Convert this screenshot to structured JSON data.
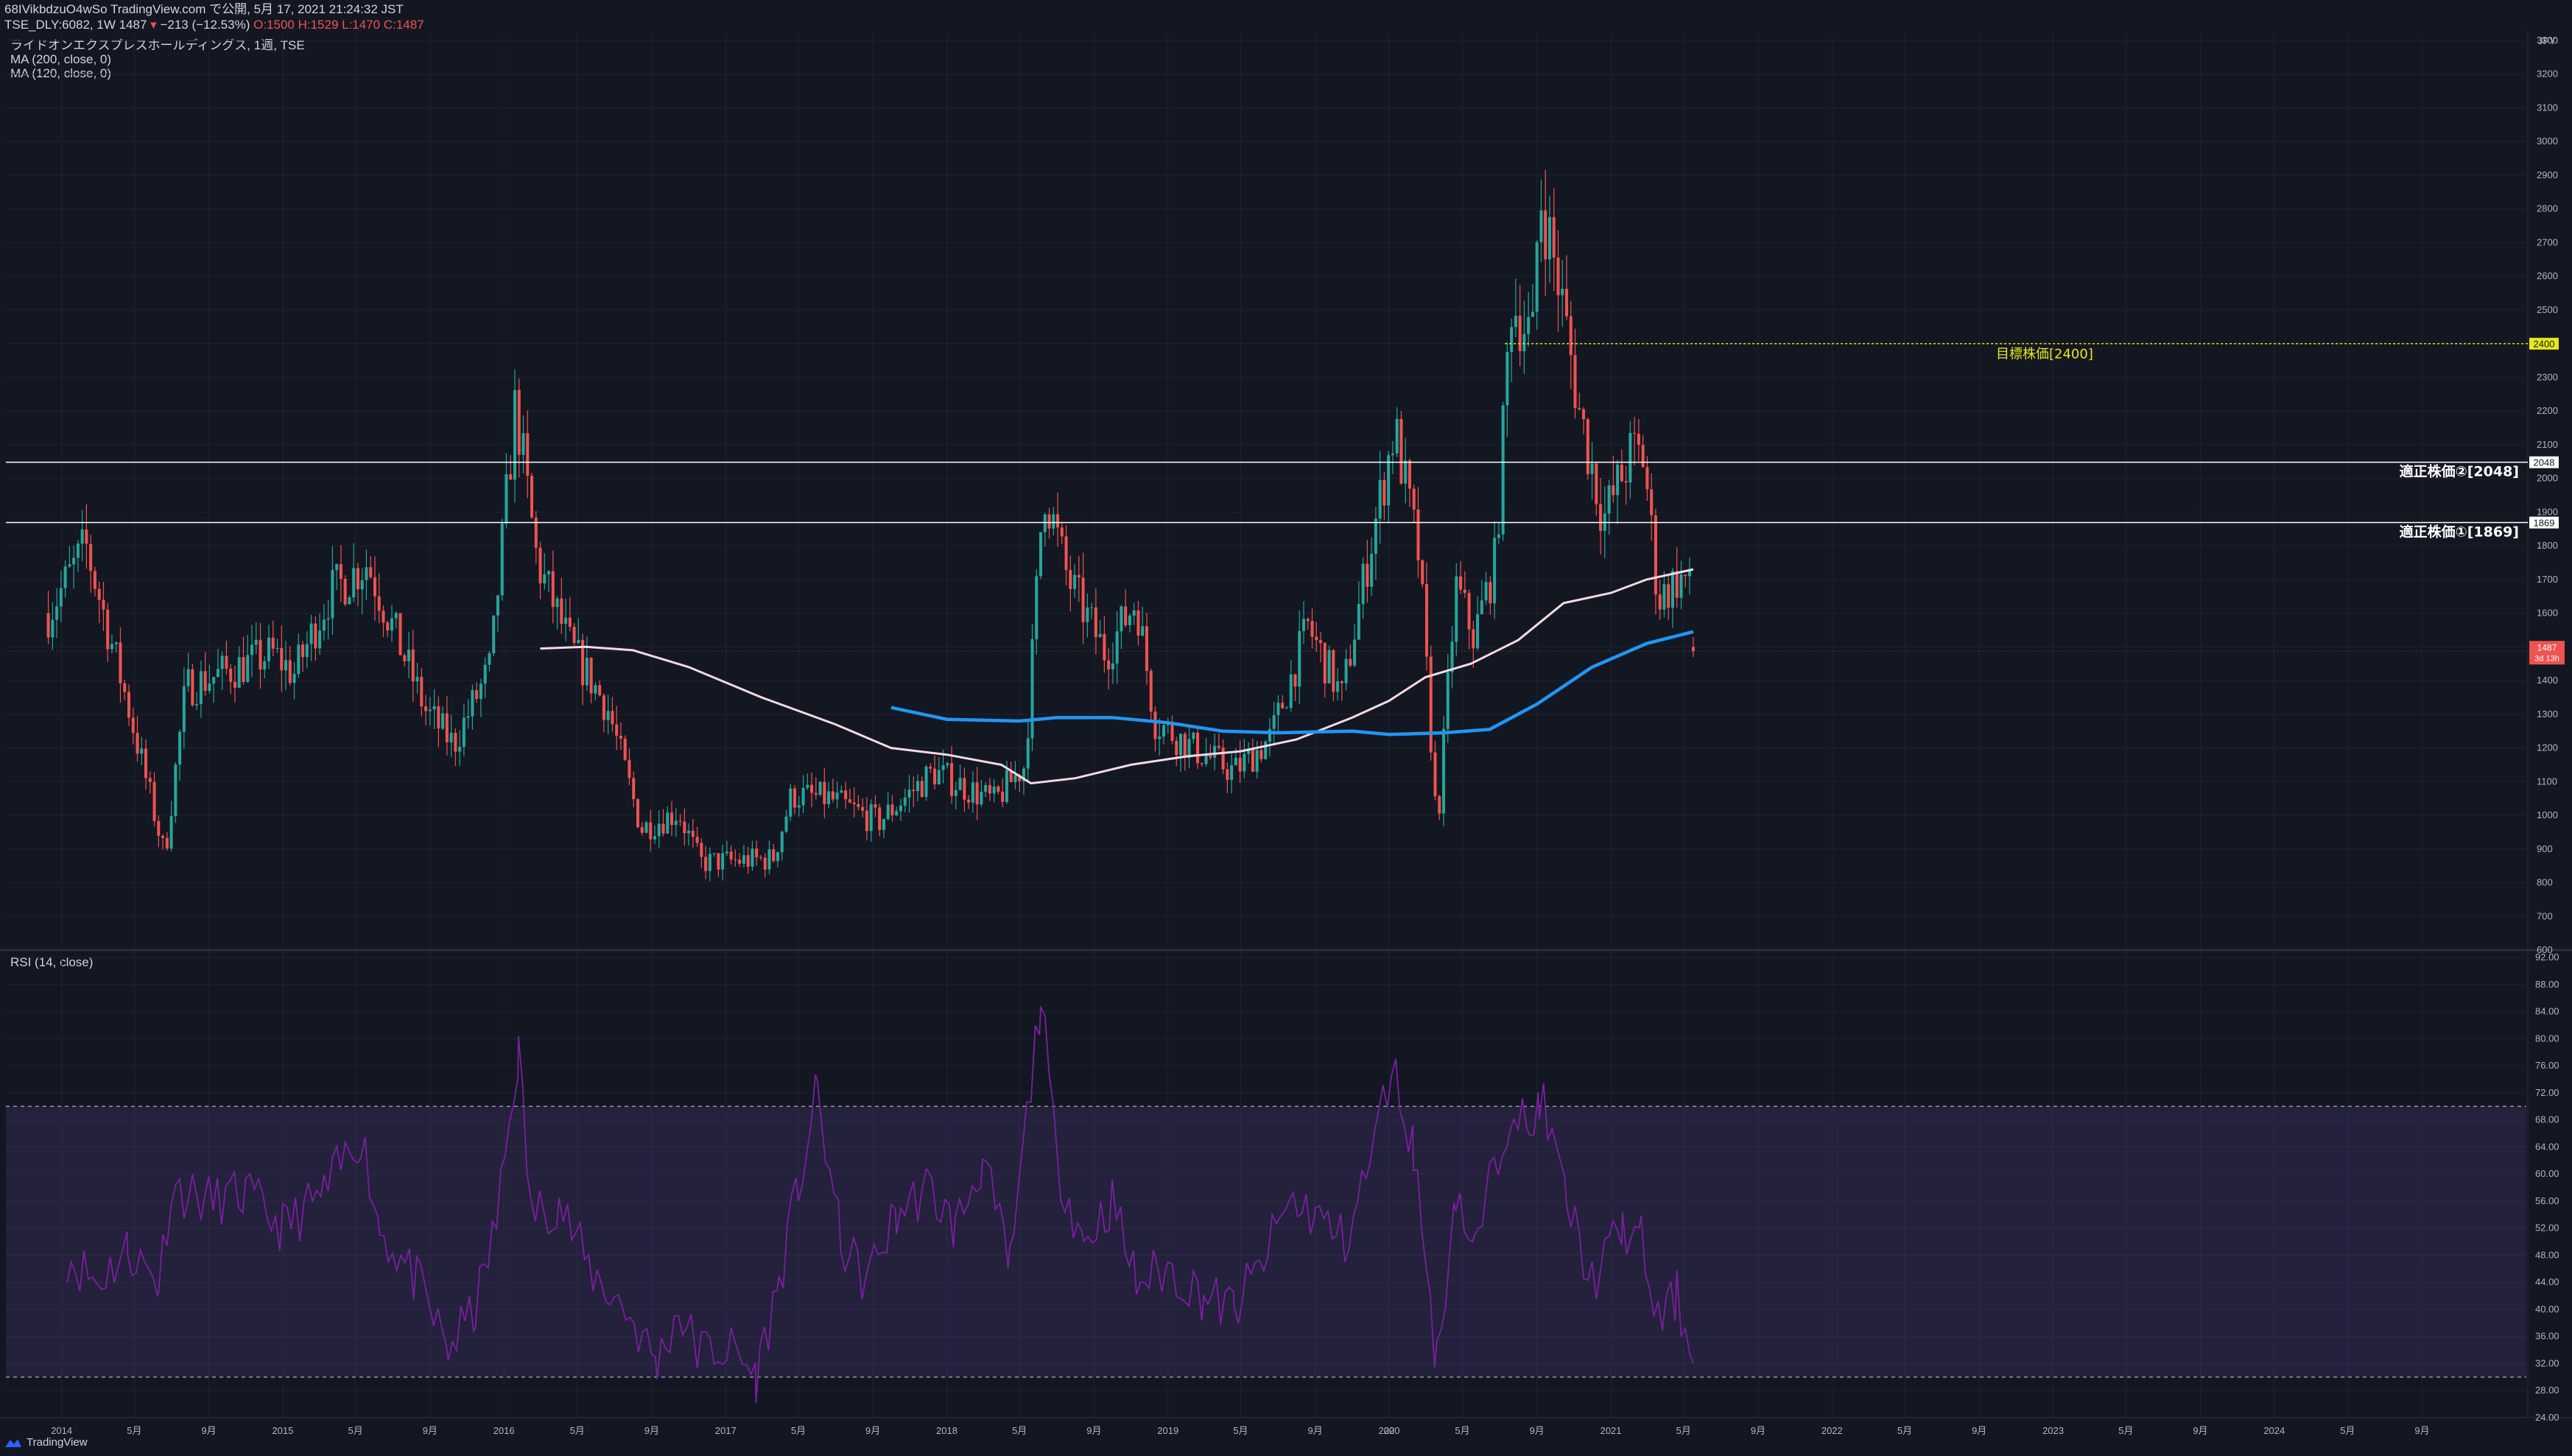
{
  "header": {
    "published": "68IVikbdzuO4wSo TradingView.com で公開, 5月 17, 2021 21:24:32 JST",
    "symbol": "TSE_DLY:6082, 1W 1487",
    "change": "−213 (−12.53%)",
    "ohlc": "O:1500 H:1529 L:1470 C:1487"
  },
  "legend": {
    "title": "ライドオンエクスプレスホールディングス, 1週, TSE",
    "ma1": "MA (200, close, 0)",
    "ma2": "MA (120, close, 0)"
  },
  "rsi_label": "RSI (14, close)",
  "footer": {
    "brand": "TradingView"
  },
  "colors": {
    "background": "#131722",
    "up": "#26a69a",
    "down": "#ef5350",
    "ma200": "#f3d9e6",
    "ma120": "#2196f3",
    "rsi": "#7b1fa2",
    "target": "#e8e81a"
  },
  "annotations": {
    "target_label": "目標株価[2400]",
    "fair2_label": "適正株価②[2048]",
    "fair1_label": "適正株価①[1869]"
  },
  "price_tags": {
    "target": "2400",
    "fair2": "2048",
    "fair1": "1869",
    "last": "1487",
    "countdown": "3d 13h",
    "currency": "JPY"
  },
  "chart_data": [
    {
      "type": "candlestick",
      "panel": "price",
      "ylim": [
        600,
        3300
      ],
      "grid": true,
      "x_ticks": [
        "2014",
        "5月",
        "9月",
        "2015",
        "5月",
        "9月",
        "2016",
        "5月",
        "9月",
        "2017",
        "5月",
        "9月",
        "2018",
        "5月",
        "9月",
        "2019",
        "5月",
        "9月",
        "2020",
        "5月",
        "9月",
        "2021",
        "5月",
        "9月",
        "2022",
        "5月",
        "9月",
        "2023",
        "5月",
        "9月",
        "2024",
        "5月",
        "9月",
        "20"
      ],
      "y_ticks": [
        600,
        700,
        800,
        900,
        1000,
        1100,
        1200,
        1300,
        1400,
        1500,
        1600,
        1700,
        1800,
        1900,
        2000,
        2100,
        2200,
        2300,
        2400,
        2500,
        2600,
        2700,
        2800,
        2900,
        3000,
        3100,
        3200,
        3300
      ],
      "x_range": [
        "2013-10-01",
        "2025-02-20"
      ],
      "anchors": [
        {
          "date": "2013-12-10",
          "close": 1600
        },
        {
          "date": "2014-02-10",
          "close": 1800
        },
        {
          "date": "2014-04-20",
          "close": 1330
        },
        {
          "date": "2014-06-20",
          "close": 880
        },
        {
          "date": "2014-07-25",
          "close": 1380
        },
        {
          "date": "2014-12-15",
          "close": 1480
        },
        {
          "date": "2015-01-20",
          "close": 1420
        },
        {
          "date": "2015-03-20",
          "close": 1660
        },
        {
          "date": "2015-05-20",
          "close": 1750
        },
        {
          "date": "2015-08-25",
          "close": 1310
        },
        {
          "date": "2015-10-10",
          "close": 1210
        },
        {
          "date": "2015-12-10",
          "close": 1440
        },
        {
          "date": "2016-01-20",
          "close": 2220
        },
        {
          "date": "2016-02-25",
          "close": 1750
        },
        {
          "date": "2016-04-20",
          "close": 1500
        },
        {
          "date": "2016-06-20",
          "close": 1320
        },
        {
          "date": "2016-08-15",
          "close": 960
        },
        {
          "date": "2016-10-15",
          "close": 1010
        },
        {
          "date": "2016-11-20",
          "close": 860
        },
        {
          "date": "2017-03-20",
          "close": 870
        },
        {
          "date": "2017-04-20",
          "close": 1060
        },
        {
          "date": "2017-06-20",
          "close": 1050
        },
        {
          "date": "2017-09-10",
          "close": 980
        },
        {
          "date": "2017-12-10",
          "close": 1130
        },
        {
          "date": "2018-03-20",
          "close": 1040
        },
        {
          "date": "2018-05-10",
          "close": 1150
        },
        {
          "date": "2018-06-10",
          "close": 1980
        },
        {
          "date": "2018-07-20",
          "close": 1700
        },
        {
          "date": "2018-09-20",
          "close": 1480
        },
        {
          "date": "2018-11-10",
          "close": 1640
        },
        {
          "date": "2018-12-10",
          "close": 1280
        },
        {
          "date": "2019-02-10",
          "close": 1200
        },
        {
          "date": "2019-04-20",
          "close": 1130
        },
        {
          "date": "2019-06-20",
          "close": 1230
        },
        {
          "date": "2019-08-20",
          "close": 1560
        },
        {
          "date": "2019-10-15",
          "close": 1350
        },
        {
          "date": "2019-11-30",
          "close": 1790
        },
        {
          "date": "2020-01-10",
          "close": 2150
        },
        {
          "date": "2020-02-20",
          "close": 1760
        },
        {
          "date": "2020-03-20",
          "close": 950
        },
        {
          "date": "2020-04-20",
          "close": 1680
        },
        {
          "date": "2020-05-20",
          "close": 1530
        },
        {
          "date": "2020-06-25",
          "close": 1760
        },
        {
          "date": "2020-07-20",
          "close": 2530
        },
        {
          "date": "2020-08-25",
          "close": 2410
        },
        {
          "date": "2020-09-05",
          "close": 2860
        },
        {
          "date": "2020-10-10",
          "close": 2550
        },
        {
          "date": "2020-11-10",
          "close": 2200
        },
        {
          "date": "2020-12-20",
          "close": 1880
        },
        {
          "date": "2021-02-05",
          "close": 2080
        },
        {
          "date": "2021-02-25",
          "close": 2060
        },
        {
          "date": "2021-03-20",
          "close": 1640
        },
        {
          "date": "2021-04-20",
          "close": 1700
        },
        {
          "date": "2021-05-10",
          "close": 1700
        },
        {
          "date": "2021-05-17",
          "close": 1487
        }
      ],
      "last_candle": {
        "date": "2021-05-17",
        "open": 1500,
        "high": 1529,
        "low": 1470,
        "close": 1487
      },
      "annotation_anchors": {
        "target_start_date": "2020-07-10",
        "fair_start_date": "2013-10-01"
      },
      "levels": [
        {
          "label": "目標株価[2400]",
          "value": 2400,
          "style": "dotted"
        },
        {
          "label": "適正株価②[2048]",
          "value": 2048,
          "style": "solid"
        },
        {
          "label": "適正株価①[1869]",
          "value": 1869,
          "style": "solid"
        }
      ],
      "ma200": {
        "name": "MA (200, close, 0)",
        "points": [
          [
            "2016-03-01",
            1495
          ],
          [
            "2016-05-15",
            1500
          ],
          [
            "2016-08-01",
            1490
          ],
          [
            "2016-11-01",
            1440
          ],
          [
            "2017-03-01",
            1350
          ],
          [
            "2017-07-01",
            1270
          ],
          [
            "2017-10-01",
            1200
          ],
          [
            "2018-01-01",
            1180
          ],
          [
            "2018-04-01",
            1150
          ],
          [
            "2018-05-20",
            1095
          ],
          [
            "2018-08-01",
            1110
          ],
          [
            "2018-11-01",
            1150
          ],
          [
            "2019-02-01",
            1175
          ],
          [
            "2019-05-01",
            1190
          ],
          [
            "2019-08-01",
            1225
          ],
          [
            "2019-11-01",
            1290
          ],
          [
            "2020-01-01",
            1340
          ],
          [
            "2020-03-01",
            1410
          ],
          [
            "2020-05-15",
            1450
          ],
          [
            "2020-08-01",
            1520
          ],
          [
            "2020-10-15",
            1630
          ],
          [
            "2021-01-01",
            1660
          ],
          [
            "2021-03-01",
            1700
          ],
          [
            "2021-05-17",
            1730
          ]
        ]
      },
      "ma120": {
        "name": "MA (120, close, 0)",
        "points": [
          [
            "2017-10-01",
            1320
          ],
          [
            "2018-01-01",
            1285
          ],
          [
            "2018-05-01",
            1280
          ],
          [
            "2018-07-01",
            1290
          ],
          [
            "2018-10-01",
            1290
          ],
          [
            "2019-01-01",
            1275
          ],
          [
            "2019-04-01",
            1250
          ],
          [
            "2019-07-01",
            1245
          ],
          [
            "2019-11-01",
            1250
          ],
          [
            "2020-01-01",
            1240
          ],
          [
            "2020-04-01",
            1245
          ],
          [
            "2020-06-15",
            1255
          ],
          [
            "2020-09-01",
            1330
          ],
          [
            "2020-12-01",
            1440
          ],
          [
            "2021-03-01",
            1510
          ],
          [
            "2021-05-17",
            1545
          ]
        ]
      }
    },
    {
      "type": "line",
      "panel": "rsi",
      "title": "RSI (14, close)",
      "ylim": [
        24,
        92
      ],
      "y_ticks": [
        24,
        28,
        32,
        36,
        40,
        44,
        48,
        52,
        56,
        60,
        64,
        68,
        72,
        76,
        80,
        84,
        88,
        92
      ],
      "band": [
        30,
        70
      ],
      "points": [
        [
          "2014-01-10",
          48
        ],
        [
          "2014-03-01",
          44
        ],
        [
          "2014-04-20",
          49
        ],
        [
          "2014-06-10",
          44
        ],
        [
          "2014-07-01",
          58
        ],
        [
          "2014-09-01",
          56
        ],
        [
          "2014-11-01",
          57
        ],
        [
          "2015-01-01",
          52
        ],
        [
          "2015-03-10",
          57
        ],
        [
          "2015-05-10",
          66
        ],
        [
          "2015-06-10",
          52
        ],
        [
          "2015-08-10",
          44
        ],
        [
          "2015-10-01",
          34
        ],
        [
          "2015-11-15",
          40
        ],
        [
          "2015-12-20",
          53
        ],
        [
          "2016-01-25",
          78
        ],
        [
          "2016-02-15",
          54
        ],
        [
          "2016-04-01",
          56
        ],
        [
          "2016-05-20",
          46
        ],
        [
          "2016-07-20",
          40
        ],
        [
          "2016-09-10",
          32
        ],
        [
          "2016-10-15",
          40
        ],
        [
          "2016-11-15",
          34
        ],
        [
          "2017-01-15",
          34
        ],
        [
          "2017-02-20",
          30
        ],
        [
          "2017-03-30",
          44
        ],
        [
          "2017-05-01",
          58
        ],
        [
          "2017-06-01",
          72
        ],
        [
          "2017-07-10",
          50
        ],
        [
          "2017-08-20",
          44
        ],
        [
          "2017-10-10",
          54
        ],
        [
          "2017-12-01",
          58
        ],
        [
          "2018-01-15",
          52
        ],
        [
          "2018-03-01",
          62
        ],
        [
          "2018-04-15",
          46
        ],
        [
          "2018-06-05",
          86
        ],
        [
          "2018-07-01",
          62
        ],
        [
          "2018-08-15",
          50
        ],
        [
          "2018-10-01",
          56
        ],
        [
          "2018-11-10",
          44
        ],
        [
          "2019-01-01",
          46
        ],
        [
          "2019-03-01",
          42
        ],
        [
          "2019-04-20",
          40
        ],
        [
          "2019-06-01",
          46
        ],
        [
          "2019-07-20",
          56
        ],
        [
          "2019-09-01",
          54
        ],
        [
          "2019-10-20",
          50
        ],
        [
          "2019-12-01",
          62
        ],
        [
          "2020-01-05",
          76
        ],
        [
          "2020-02-10",
          64
        ],
        [
          "2020-03-20",
          32
        ],
        [
          "2020-04-20",
          58
        ],
        [
          "2020-05-20",
          48
        ],
        [
          "2020-06-15",
          58
        ],
        [
          "2020-07-25",
          72
        ],
        [
          "2020-08-20",
          64
        ],
        [
          "2020-09-05",
          72
        ],
        [
          "2020-10-20",
          56
        ],
        [
          "2020-12-01",
          44
        ],
        [
          "2021-01-20",
          52
        ],
        [
          "2021-02-20",
          50
        ],
        [
          "2021-03-20",
          38
        ],
        [
          "2021-04-20",
          42
        ],
        [
          "2021-05-17",
          32
        ]
      ]
    }
  ]
}
